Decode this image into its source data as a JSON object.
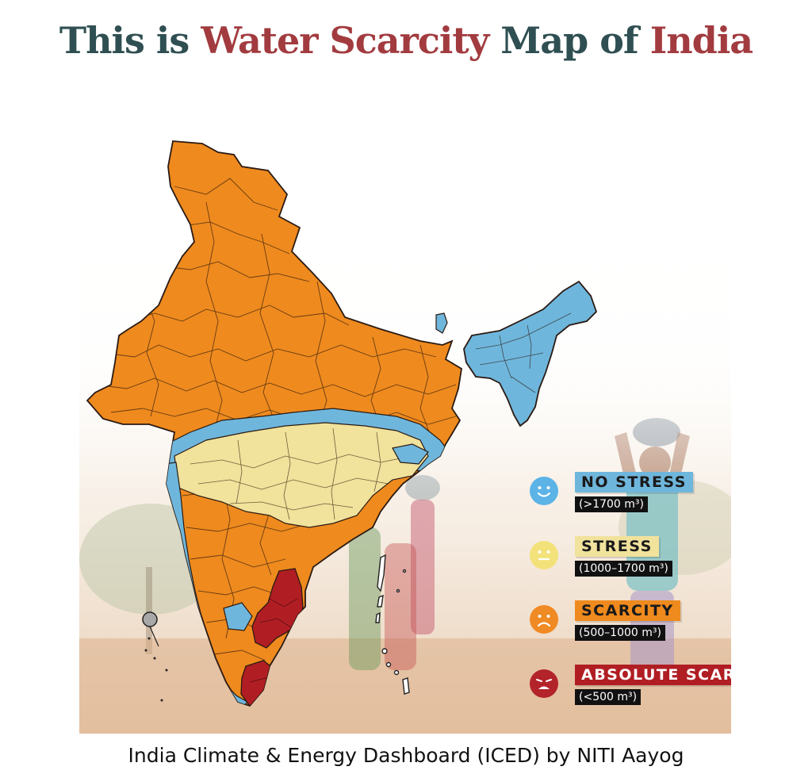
{
  "title": {
    "part1": "This is ",
    "part2": "Water Scarcity",
    "part3": " Map of ",
    "part4": "India"
  },
  "colors": {
    "no_stress": "#6fb6dc",
    "stress": "#f1e29c",
    "scarcity": "#ef8a1e",
    "absolute_scarcity": "#b01e23",
    "title_dark": "#2f4f52",
    "title_red": "#a23b3f"
  },
  "legend": [
    {
      "label": "NO STRESS",
      "range": "(>1700 m³)",
      "icon": "smiling-face-icon",
      "color": "#6fb6dc",
      "face_color": "#5bb3e6"
    },
    {
      "label": "STRESS",
      "range": "(1000–1700 m³)",
      "icon": "neutral-face-icon",
      "color": "#f1e29c",
      "face_color": "#f3e27a"
    },
    {
      "label": "SCARCITY",
      "range": "(500–1000 m³)",
      "icon": "frowning-face-icon",
      "color": "#ef8a1e",
      "face_color": "#f08a24"
    },
    {
      "label": "ABSOLUTE SCARCITY",
      "range": "(<500 m³)",
      "icon": "crying-face-icon",
      "color": "#b01e23",
      "face_color": "#b3232a"
    }
  ],
  "caption": "India Climate & Energy Dashboard (ICED) by NITI Aayog"
}
